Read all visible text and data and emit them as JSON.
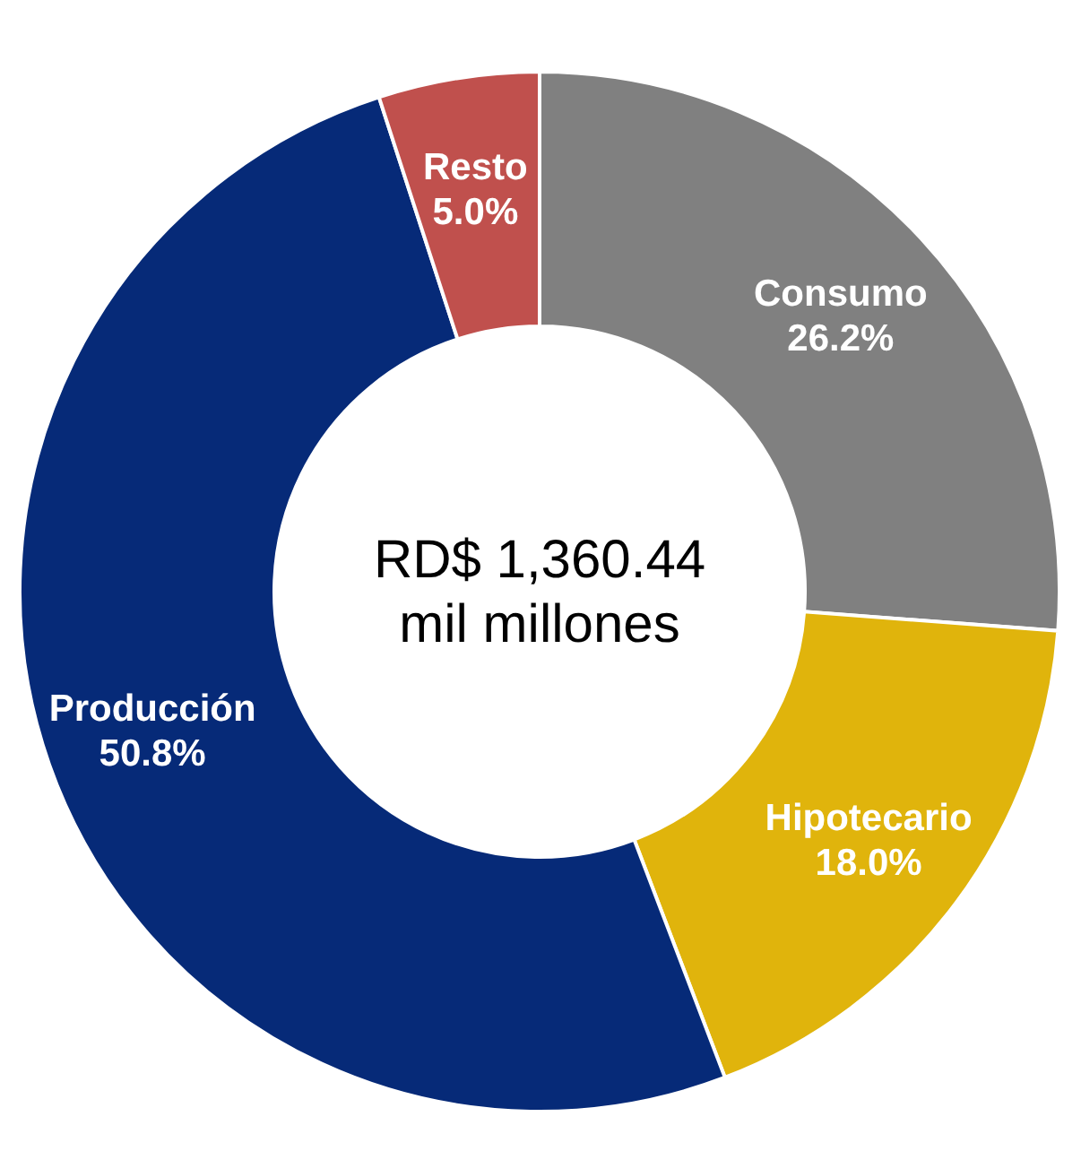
{
  "chart_data": {
    "type": "donut",
    "categories": [
      "Consumo",
      "Hipotecario",
      "Producción",
      "Resto"
    ],
    "values": [
      26.2,
      18.0,
      50.8,
      5.0
    ],
    "colors": [
      "#808080",
      "#e0b40c",
      "#062a78",
      "#c0504d"
    ],
    "value_labels": [
      "26.2%",
      "18.0%",
      "50.8%",
      "5.0%"
    ],
    "annotations": [
      "RD$ 1,360.44",
      "mil millones"
    ],
    "legend": false
  }
}
